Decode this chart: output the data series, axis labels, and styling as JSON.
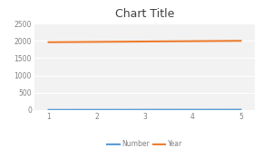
{
  "x": [
    1,
    2,
    3,
    4,
    5
  ],
  "number_values": [
    1,
    2,
    3,
    4,
    5
  ],
  "year_values": [
    1960,
    1970,
    1980,
    1990,
    2000
  ],
  "title": "Chart Title",
  "xlim": [
    0.7,
    5.3
  ],
  "ylim": [
    0,
    2500
  ],
  "yticks": [
    0,
    500,
    1000,
    1500,
    2000,
    2500
  ],
  "xticks": [
    1,
    2,
    3,
    4,
    5
  ],
  "number_color": "#5B9BD5",
  "year_color": "#ED7D31",
  "background_color": "#ffffff",
  "plot_bg_color": "#f2f2f2",
  "title_fontsize": 9,
  "tick_fontsize": 5.5,
  "legend_labels": [
    "Number",
    "Year"
  ],
  "grid_color": "#ffffff",
  "title_color": "#404040",
  "tick_color": "#808080"
}
